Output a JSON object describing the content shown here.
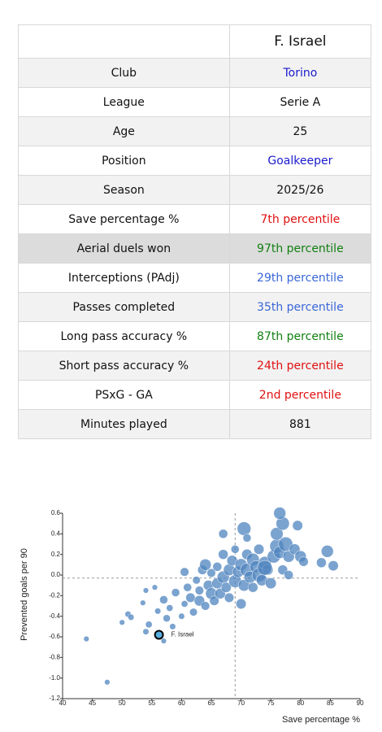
{
  "table": {
    "header": "F. Israel",
    "rows": [
      {
        "label": "Club",
        "value": "Torino",
        "color": "#1a1acc"
      },
      {
        "label": "League",
        "value": "Serie A",
        "color": "#111111"
      },
      {
        "label": "Age",
        "value": "25",
        "color": "#111111"
      },
      {
        "label": "Position",
        "value": "Goalkeeper",
        "color": "#1a1acc"
      },
      {
        "label": "Season",
        "value": "2025/26",
        "color": "#111111"
      },
      {
        "label": "Save percentage %",
        "value": "7th percentile",
        "color": "#e01010"
      },
      {
        "label": "Aerial duels won",
        "value": "97th percentile",
        "color": "#128012",
        "highlight": true
      },
      {
        "label": "Interceptions (PAdj)",
        "value": "29th percentile",
        "color": "#3a66d8"
      },
      {
        "label": "Passes completed",
        "value": "35th percentile",
        "color": "#3a66d8"
      },
      {
        "label": "Long pass accuracy %",
        "value": "87th percentile",
        "color": "#128012"
      },
      {
        "label": "Short pass accuracy %",
        "value": "24th percentile",
        "color": "#e01010"
      },
      {
        "label": "PSxG - GA",
        "value": "2nd percentile",
        "color": "#e01010"
      },
      {
        "label": "Minutes played",
        "value": "881",
        "color": "#111111"
      }
    ]
  },
  "chart_data": {
    "type": "scatter",
    "x_label": "Save percentage %",
    "y_label": "Prevented goals per 90",
    "xlim": [
      40,
      90
    ],
    "ylim": [
      -1.2,
      0.6
    ],
    "xticks": [
      40,
      45,
      50,
      55,
      60,
      65,
      70,
      75,
      80,
      85,
      90
    ],
    "yticks": [
      0.6,
      0.4,
      0.2,
      {
        "value": 0,
        "label": "0.0"
      },
      -0.2,
      -0.4,
      -0.6,
      -0.8,
      {
        "value": -1,
        "label": "-1.0"
      },
      -1.2
    ],
    "color": "#4f84bf",
    "reference_lines": {
      "x": 69,
      "y": -0.03
    },
    "x": [
      44,
      47.5,
      50,
      51,
      51.5,
      53.5,
      54,
      54.5,
      54,
      55.5,
      56,
      57,
      57,
      57.5,
      58.5,
      58,
      59,
      60,
      60.5,
      61,
      61.5,
      62,
      62.5,
      63,
      63,
      63.5,
      64,
      64.5,
      65,
      65,
      65.5,
      66,
      66,
      66.5,
      67,
      67,
      67.5,
      68,
      68,
      68.5,
      69,
      69,
      69.5,
      70,
      70,
      70.5,
      71,
      71,
      71.5,
      72,
      72,
      72.5,
      73,
      73,
      73.5,
      74,
      74.5,
      75,
      75.5,
      76,
      76,
      76.5,
      77,
      77,
      77.5,
      78,
      78,
      79,
      79.5,
      80,
      80.5,
      83.5,
      84.5,
      85.5,
      76.5,
      74,
      70.5,
      64,
      60.5,
      67,
      71
    ],
    "y": [
      -0.62,
      -1.04,
      -0.46,
      -0.38,
      -0.41,
      -0.27,
      -0.55,
      -0.48,
      -0.15,
      -0.12,
      -0.35,
      -0.64,
      -0.24,
      -0.42,
      -0.5,
      -0.32,
      -0.17,
      -0.4,
      -0.28,
      -0.12,
      -0.22,
      -0.36,
      -0.05,
      -0.25,
      -0.15,
      0.05,
      -0.3,
      -0.1,
      -0.18,
      0.02,
      -0.25,
      -0.08,
      0.08,
      -0.18,
      -0.02,
      0.2,
      -0.12,
      0.05,
      -0.22,
      0.14,
      -0.06,
      0.25,
      0.03,
      -0.28,
      0.1,
      -0.1,
      0.05,
      0.2,
      -0.02,
      0.15,
      -0.12,
      0.08,
      0,
      0.25,
      -0.05,
      0.12,
      0.05,
      -0.08,
      0.18,
      0.28,
      0.4,
      0.22,
      0.5,
      0.05,
      0.3,
      0.18,
      0,
      0.25,
      0.48,
      0.18,
      0.13,
      0.12,
      0.23,
      0.09,
      0.6,
      0.07,
      0.45,
      0.1,
      0.03,
      0.4,
      0.36
    ],
    "sizes": [
      400,
      400,
      400,
      500,
      500,
      400,
      500,
      600,
      400,
      400,
      500,
      400,
      900,
      700,
      500,
      600,
      900,
      500,
      600,
      900,
      1200,
      800,
      800,
      1500,
      1000,
      1200,
      1000,
      1400,
      1800,
      1000,
      1200,
      1600,
      1100,
      1500,
      2000,
      1300,
      1400,
      1800,
      1200,
      1500,
      2200,
      900,
      1700,
      1400,
      2000,
      1800,
      2400,
      1500,
      1900,
      2200,
      1300,
      2000,
      2500,
      1400,
      1700,
      2100,
      1500,
      1600,
      2300,
      2600,
      2200,
      2000,
      2400,
      1300,
      2700,
      1800,
      1100,
      1600,
      1400,
      1800,
      1200,
      1300,
      2000,
      1400,
      2000,
      2900,
      2500,
      1800,
      1000,
      1100,
      900
    ],
    "highlight_point": {
      "name": "F. Israel",
      "x": 56.2,
      "y": -0.58,
      "size": 881,
      "color": "#5aaee0"
    }
  }
}
